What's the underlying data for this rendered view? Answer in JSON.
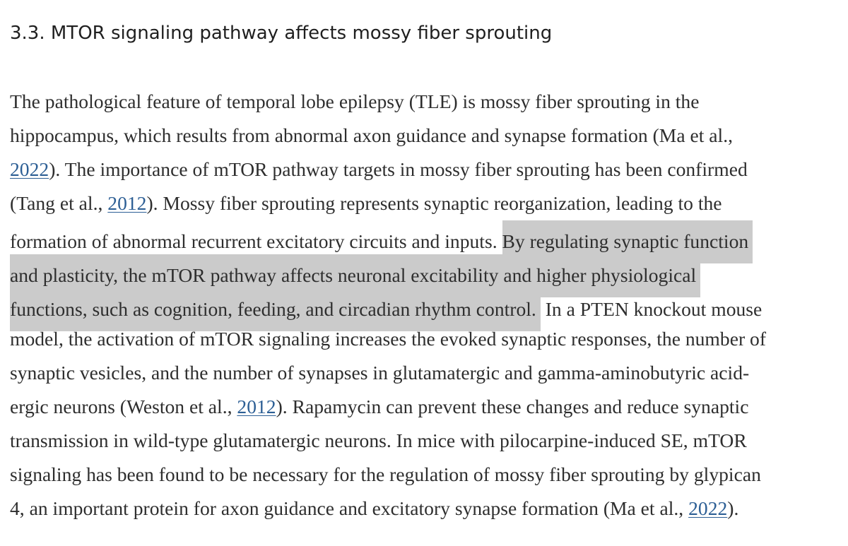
{
  "section": {
    "heading": "3.3. MTOR signaling pathway affects mossy fiber sprouting"
  },
  "paragraph": {
    "l1": "The pathological feature of temporal lobe epilepsy (TLE) is mossy fiber sprouting in the",
    "l2": "hippocampus, which results from abnormal axon guidance and synapse formation (Ma et al.,",
    "l3_link": "2022",
    "l3_text": "). The importance of mTOR pathway targets in mossy fiber sprouting has been confirmed",
    "l4_pre": "(Tang et al., ",
    "l4_link": "2012",
    "l4_post": "). Mossy fiber sprouting represents synaptic reorganization, leading to the",
    "l5_pre": "formation of abnormal recurrent excitatory circuits and inputs. ",
    "l5_sel": "By regulating synaptic function",
    "l6_sel": "and plasticity, the mTOR pathway affects neuronal excitability and higher physiological",
    "l7_sel": "functions, such as cognition, feeding, and circadian rhythm control.",
    "l7_post": " In a PTEN knockout mouse",
    "l8": "model, the activation of mTOR signaling increases the evoked synaptic responses, the number of",
    "l9": "synaptic vesicles, and the number of synapses in glutamatergic and gamma-aminobutyric acid-",
    "l10_pre": "ergic neurons (Weston et al., ",
    "l10_link": "2012",
    "l10_post": "). Rapamycin can prevent these changes and reduce synaptic",
    "l11": "transmission in wild-type glutamatergic neurons. In mice with pilocarpine-induced SE, mTOR",
    "l12": "signaling has been found to be necessary for the regulation of mossy fiber sprouting by glypican",
    "l13_pre": "4, an important protein for axon guidance and excitatory synapse formation (Ma et al., ",
    "l13_link": "2022",
    "l13_post": ")."
  },
  "colors": {
    "link": "#2d5f95",
    "selection": "#cbcbcb",
    "text": "#2e2e2e"
  }
}
